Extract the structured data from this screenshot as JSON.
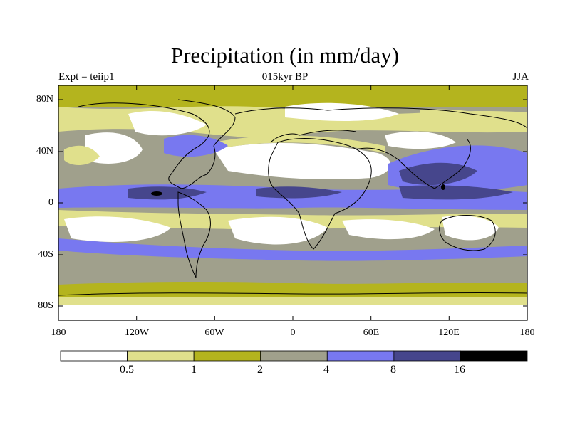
{
  "title": "Precipitation (in mm/day)",
  "subtitle_left": "Expt = teiip1",
  "subtitle_center": "015kyr BP",
  "subtitle_right": "JJA",
  "lat_labels": [
    "80N",
    "40N",
    "0",
    "40S",
    "80S"
  ],
  "lon_labels": [
    "180",
    "120W",
    "60W",
    "0",
    "60E",
    "120E",
    "180"
  ],
  "colorbar": {
    "levels": [
      "0.5",
      "1",
      "2",
      "4",
      "8",
      "16"
    ],
    "colors": [
      "#ffffff",
      "#e0e08c",
      "#b4b41e",
      "#a0a08c",
      "#7878f0",
      "#46468c",
      "#000000"
    ]
  },
  "colors": {
    "very_dry": "#ffffff",
    "dry": "#e0e08c",
    "moderate": "#b4b41e",
    "wet": "#a0a08c",
    "very_wet": "#7878f0",
    "extreme": "#46468c",
    "max": "#000000"
  }
}
